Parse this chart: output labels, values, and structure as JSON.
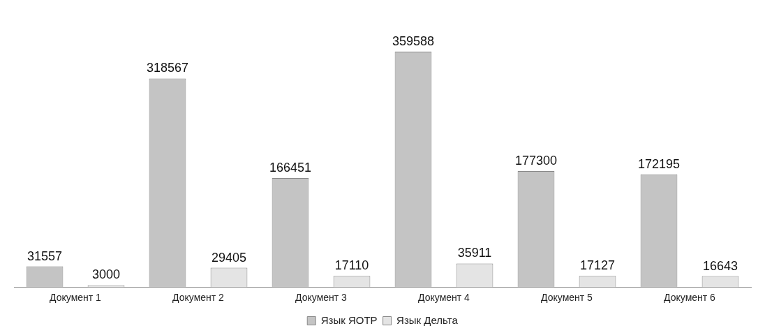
{
  "chart_data": {
    "type": "bar",
    "categories": [
      "Документ 1",
      "Документ 2",
      "Документ 3",
      "Документ 4",
      "Документ 5",
      "Документ 6"
    ],
    "series": [
      {
        "name": "Язык ЯОТР",
        "color": "#c4c4c4",
        "values": [
          31557,
          318567,
          166451,
          359588,
          177300,
          172195
        ]
      },
      {
        "name": "Язык Дельта",
        "color": "#e4e4e4",
        "values": [
          3000,
          29405,
          17110,
          35911,
          17127,
          16643
        ]
      }
    ],
    "data_labels": true,
    "legend": "bottom",
    "grid": false
  }
}
